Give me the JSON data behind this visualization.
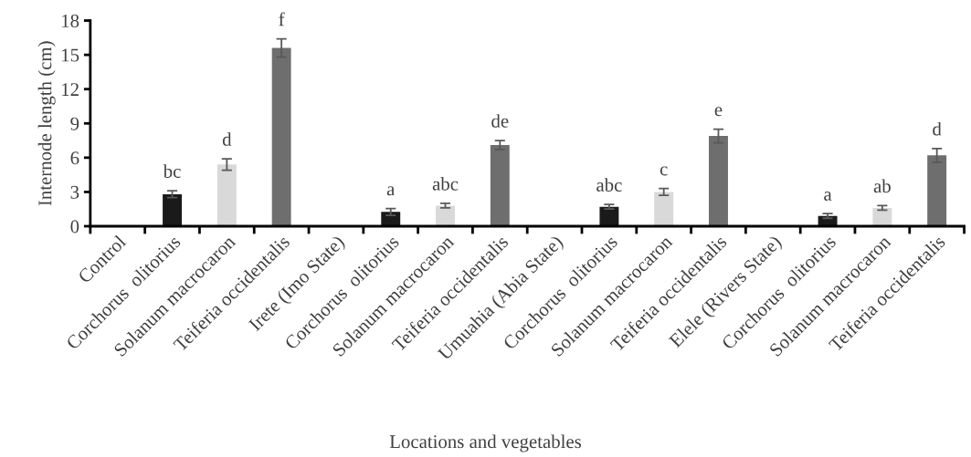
{
  "chart_data": {
    "type": "bar",
    "xlabel": "Locations and vegetables",
    "ylabel": "Internode length (cm)",
    "categories": [
      "Control",
      "Corchorus  olitorius",
      "Solanum macrocaron",
      "Teiferia occidentalis",
      "Irete (Imo State)",
      "Corchorus  olitorius",
      "Solanum macrocaron",
      "Teiferia occidentalis",
      "Umuahia (Abia State)",
      "Corchorus  olitorius",
      "Solanum macrocaron",
      "Teiferia occidentalis",
      "Elele (Rivers State)",
      "Corchorus  olitorius",
      "Solanum macrocaron",
      "Teiferia occidentalis"
    ],
    "values": [
      null,
      2.8,
      5.4,
      15.6,
      null,
      1.25,
      1.8,
      7.1,
      null,
      1.7,
      3.0,
      7.9,
      null,
      0.9,
      1.6,
      6.2
    ],
    "errors": [
      null,
      0.3,
      0.5,
      0.8,
      null,
      0.3,
      0.2,
      0.4,
      null,
      0.2,
      0.3,
      0.6,
      null,
      0.2,
      0.2,
      0.6
    ],
    "value_labels": [
      null,
      "bc",
      "d",
      "f",
      null,
      "a",
      "abc",
      "de",
      null,
      "abc",
      "c",
      "e",
      null,
      "a",
      "ab",
      "d"
    ],
    "colors": [
      "#ffffff",
      "#1a1a1a",
      "#d9d9d9",
      "#6e6e6e",
      "#ffffff",
      "#1a1a1a",
      "#d9d9d9",
      "#6e6e6e",
      "#ffffff",
      "#1a1a1a",
      "#d9d9d9",
      "#6e6e6e",
      "#ffffff",
      "#1a1a1a",
      "#d9d9d9",
      "#6e6e6e"
    ],
    "ylim": [
      0,
      18
    ],
    "yticks": [
      0,
      3,
      6,
      9,
      12,
      15,
      18
    ],
    "grid": false,
    "legend": false
  }
}
